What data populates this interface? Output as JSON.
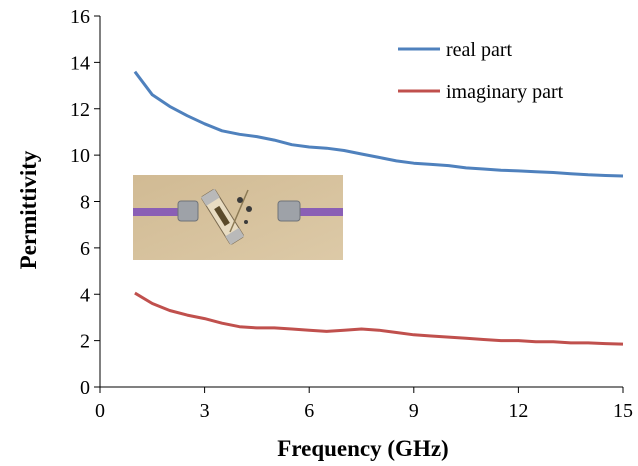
{
  "chart_data": {
    "type": "line",
    "xlabel": "Frequency (GHz)",
    "ylabel": "Permittivity",
    "xlim": [
      0,
      15
    ],
    "ylim": [
      0,
      16
    ],
    "xticks": [
      "0",
      "3",
      "6",
      "9",
      "12",
      "15"
    ],
    "yticks": [
      "0",
      "2",
      "4",
      "6",
      "8",
      "10",
      "12",
      "14",
      "16"
    ],
    "grid": false,
    "legend_position": "top-right",
    "series": [
      {
        "name": "real part",
        "color": "#4f81bd",
        "x": [
          1.0,
          1.5,
          2.0,
          2.5,
          3.0,
          3.5,
          4.0,
          4.5,
          5.0,
          5.5,
          6.0,
          6.5,
          7.0,
          7.5,
          8.0,
          8.5,
          9.0,
          9.5,
          10.0,
          10.5,
          11.0,
          11.5,
          12.0,
          12.5,
          13.0,
          13.5,
          14.0,
          14.5,
          15.0
        ],
        "y": [
          13.6,
          12.6,
          12.1,
          11.7,
          11.35,
          11.05,
          10.9,
          10.8,
          10.65,
          10.45,
          10.35,
          10.3,
          10.2,
          10.05,
          9.9,
          9.75,
          9.65,
          9.6,
          9.55,
          9.45,
          9.4,
          9.35,
          9.32,
          9.28,
          9.25,
          9.2,
          9.15,
          9.12,
          9.1
        ]
      },
      {
        "name": "imaginary part",
        "color": "#c0504d",
        "x": [
          1.0,
          1.5,
          2.0,
          2.5,
          3.0,
          3.5,
          4.0,
          4.5,
          5.0,
          5.5,
          6.0,
          6.5,
          7.0,
          7.5,
          8.0,
          8.5,
          9.0,
          9.5,
          10.0,
          10.5,
          11.0,
          11.5,
          12.0,
          12.5,
          13.0,
          13.5,
          14.0,
          14.5,
          15.0
        ],
        "y": [
          4.05,
          3.6,
          3.3,
          3.1,
          2.95,
          2.75,
          2.6,
          2.55,
          2.55,
          2.5,
          2.45,
          2.4,
          2.45,
          2.5,
          2.45,
          2.35,
          2.25,
          2.2,
          2.15,
          2.1,
          2.05,
          2.0,
          2.0,
          1.95,
          1.95,
          1.9,
          1.9,
          1.87,
          1.85
        ]
      }
    ]
  },
  "inset": {
    "description_icon": "fuse-sample-photo"
  }
}
